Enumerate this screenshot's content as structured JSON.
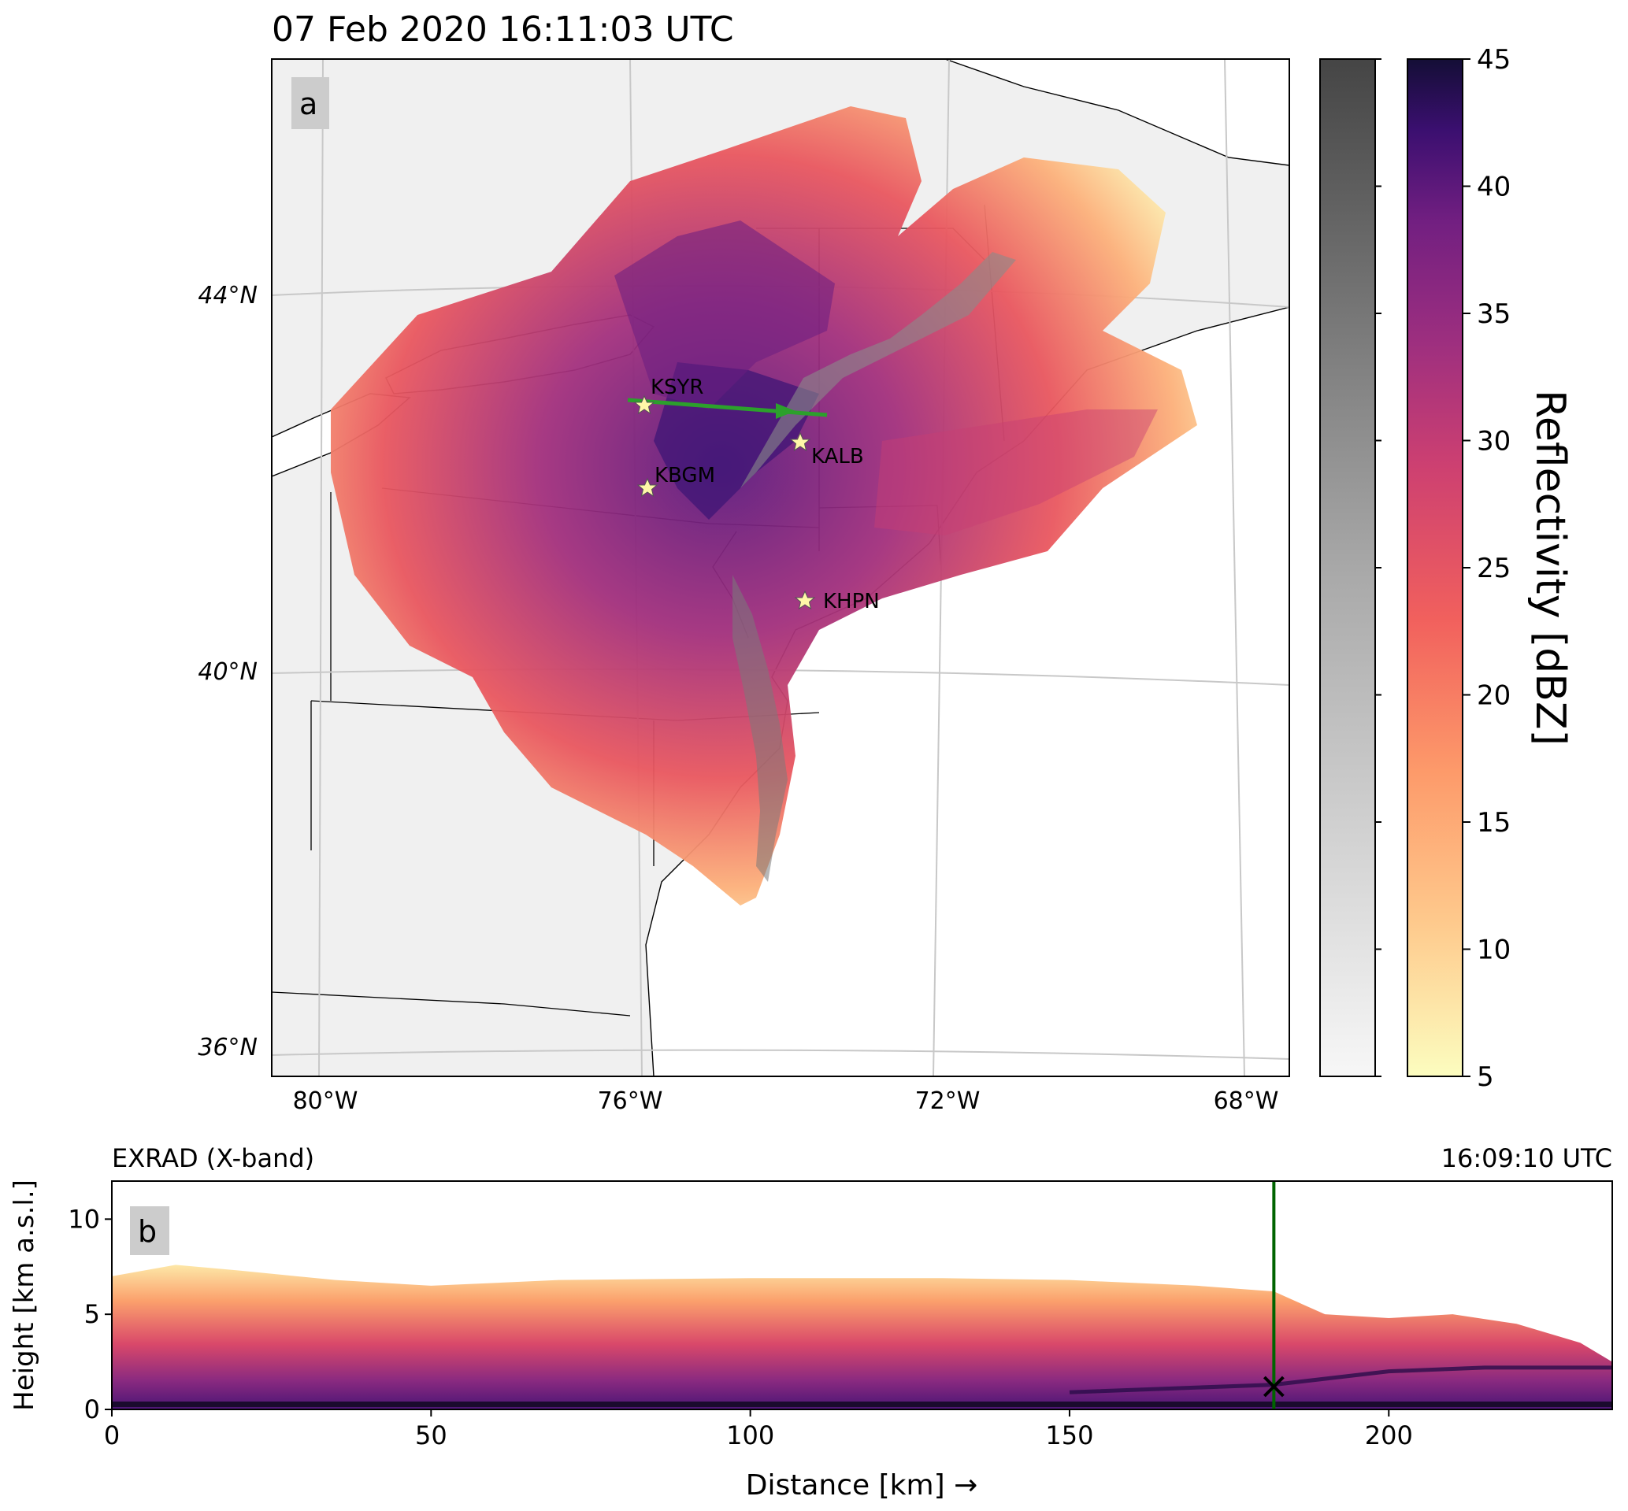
{
  "panel_a": {
    "title": "07 Feb 2020 16:11:03 UTC",
    "label": "a",
    "lat_ticks": [
      "44°N",
      "40°N",
      "36°N"
    ],
    "lon_ticks": [
      "80°W",
      "76°W",
      "72°W",
      "68°W"
    ],
    "stations": [
      {
        "name": "KSYR",
        "lon": -76.1,
        "lat": 43.1
      },
      {
        "name": "KBGM",
        "lon": -75.98,
        "lat": 42.2
      },
      {
        "name": "KALB",
        "lon": -73.8,
        "lat": 42.75
      },
      {
        "name": "KHPN",
        "lon": -73.7,
        "lat": 41.07
      }
    ],
    "flight_track": {
      "start": {
        "lon": -76.3,
        "lat": 43.2
      },
      "end": {
        "lon": -73.6,
        "lat": 43.0
      },
      "color": "#2ca02c"
    }
  },
  "colorbar": {
    "label": "Reflectivity [dBZ]",
    "ticks": [
      "5",
      "10",
      "15",
      "20",
      "25",
      "30",
      "35",
      "40",
      "45"
    ],
    "colormap": "magma_r",
    "gray_colormap": "Greys"
  },
  "panel_b": {
    "instrument": "EXRAD (X-band)",
    "time": "16:09:10 UTC",
    "label": "b",
    "xlabel": "Distance [km]  →",
    "ylabel": "Height [km a.s.l.]",
    "x_ticks": [
      "0",
      "50",
      "100",
      "150",
      "200"
    ],
    "y_ticks": [
      "0",
      "5",
      "10"
    ],
    "marker_line_color": "#006400"
  },
  "chart_data": [
    {
      "type": "heatmap",
      "title": "07 Feb 2020 16:11:03 UTC",
      "variable": "Reflectivity [dBZ]",
      "xlim": [
        -81,
        -67
      ],
      "ylim": [
        35.5,
        47
      ],
      "x_ticks": [
        -80,
        -76,
        -72,
        -68
      ],
      "y_ticks": [
        36,
        40,
        44
      ],
      "points": [
        {
          "name": "KSYR",
          "lon": -76.1,
          "lat": 43.1
        },
        {
          "name": "KBGM",
          "lon": -75.98,
          "lat": 42.2
        },
        {
          "name": "KALB",
          "lon": -73.8,
          "lat": 42.75
        },
        {
          "name": "KHPN",
          "lon": -73.7,
          "lat": 41.07
        }
      ],
      "colorbar_range": [
        5,
        45
      ]
    },
    {
      "type": "heatmap",
      "title": "EXRAD (X-band)",
      "xlabel": "Distance [km]",
      "ylabel": "Height [km a.s.l.]",
      "xlim": [
        0,
        235
      ],
      "ylim": [
        0,
        12
      ],
      "x_ticks": [
        0,
        50,
        100,
        150,
        200
      ],
      "y_ticks": [
        0,
        5,
        10
      ],
      "echo_top_profile": [
        {
          "x": 0,
          "y": 7.0
        },
        {
          "x": 10,
          "y": 7.6
        },
        {
          "x": 20,
          "y": 7.3
        },
        {
          "x": 35,
          "y": 6.8
        },
        {
          "x": 50,
          "y": 6.5
        },
        {
          "x": 70,
          "y": 6.8
        },
        {
          "x": 100,
          "y": 6.9
        },
        {
          "x": 130,
          "y": 6.9
        },
        {
          "x": 150,
          "y": 6.8
        },
        {
          "x": 170,
          "y": 6.5
        },
        {
          "x": 182,
          "y": 6.2
        },
        {
          "x": 190,
          "y": 5.0
        },
        {
          "x": 200,
          "y": 4.8
        },
        {
          "x": 210,
          "y": 5.0
        },
        {
          "x": 220,
          "y": 4.5
        },
        {
          "x": 230,
          "y": 3.5
        },
        {
          "x": 235,
          "y": 2.5
        }
      ],
      "bright_band_height": [
        {
          "x": 150,
          "y": 0.9
        },
        {
          "x": 182,
          "y": 1.3
        },
        {
          "x": 200,
          "y": 2.0
        },
        {
          "x": 215,
          "y": 2.2
        },
        {
          "x": 235,
          "y": 2.2
        }
      ],
      "vertical_line_x": 182,
      "marker": {
        "x": 182,
        "y": 1.2
      },
      "colorbar_range": [
        5,
        45
      ]
    }
  ]
}
